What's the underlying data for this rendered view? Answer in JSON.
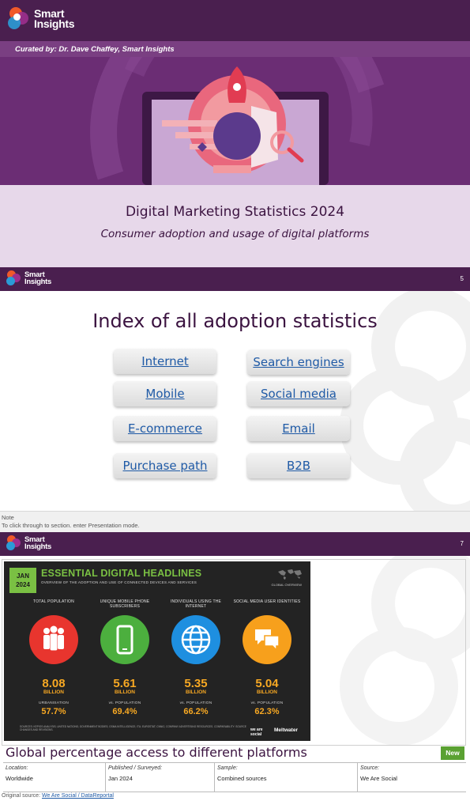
{
  "brand": {
    "logo_text": [
      "Smart",
      "Insights"
    ]
  },
  "cover": {
    "curator": "Curated by: Dr. Dave Chaffey, Smart Insights",
    "title": "Digital Marketing Statistics 2024",
    "subtitle": "Consumer adoption and usage of digital platforms"
  },
  "index_slide": {
    "slide_number": "5",
    "heading": "Index of all adoption statistics",
    "buttons": [
      "Internet",
      "Search engines",
      "Mobile",
      "Social media",
      "E-commerce",
      "Email",
      "Purchase path",
      "B2B"
    ],
    "note_label": "Note",
    "note_text": "To click through to section. enter Presentation mode."
  },
  "stats_slide": {
    "slide_number": "7",
    "infographic": {
      "date_month": "JAN",
      "date_year": "2024",
      "title": "ESSENTIAL DIGITAL HEADLINES",
      "subtitle": "OVERVIEW OF THE ADOPTION AND USE OF CONNECTED DEVICES AND SERVICES",
      "global_overview": "GLOBAL OVERVIEW",
      "stats": [
        {
          "label": "TOTAL POPULATION",
          "value": "8.08",
          "unit": "BILLION",
          "sublabel": "URBANISATION",
          "pct": "57.7%",
          "color": "#e8352e",
          "icon": "people-icon"
        },
        {
          "label": "UNIQUE MOBILE PHONE SUBSCRIBERS",
          "value": "5.61",
          "unit": "BILLION",
          "sublabel": "vs. POPULATION",
          "pct": "69.4%",
          "color": "#4caf3e",
          "icon": "mobile-phone-icon"
        },
        {
          "label": "INDIVIDUALS USING THE INTERNET",
          "value": "5.35",
          "unit": "BILLION",
          "sublabel": "vs. POPULATION",
          "pct": "66.2%",
          "color": "#1e8fe0",
          "icon": "globe-icon"
        },
        {
          "label": "SOCIAL MEDIA USER IDENTITIES",
          "value": "5.04",
          "unit": "BILLION",
          "sublabel": "vs. POPULATION",
          "pct": "62.3%",
          "color": "#f7a01c",
          "icon": "chat-bubbles-icon"
        }
      ],
      "footnote": "SOURCES: KEPIOS ANALYSIS; UNITED NATIONS; GOVERNMENT BODIES; GSMA INTELLIGENCE; ITU; EUROSTAT; CNNIC; COMPANY ADVERTISING RESOURCES. COMPARABILITY: SOURCE CHANGES AND REVISIONS.",
      "brand_left": "we are social",
      "brand_right": "Meltwater"
    },
    "caption": "Global percentage access to different platforms",
    "badge": "New",
    "meta": [
      {
        "key": "Location:",
        "value": "Worldwide"
      },
      {
        "key": "Published / Surveyed:",
        "value": "Jan 2024"
      },
      {
        "key": "Sample:",
        "value": "Combined sources"
      },
      {
        "key": "Source:",
        "value": "We Are Social"
      }
    ],
    "source_prefix": "Original source:",
    "source_link": "We Are Social / DataReportal"
  },
  "colors": {
    "dark_purple": "#4a1f4f",
    "mid_purple": "#7a3f82",
    "band": "#e7d8ea",
    "link_blue": "#1f5aa6",
    "accent_green": "#7ac043",
    "stat_orange": "#f7a823"
  }
}
